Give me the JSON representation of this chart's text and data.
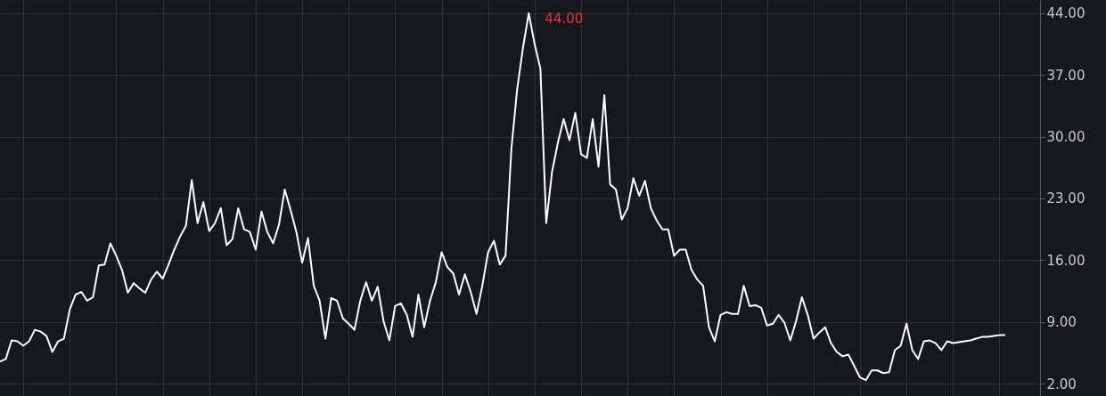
{
  "chart_data": {
    "type": "line",
    "categories": [
      null,
      null,
      null,
      null,
      null,
      null,
      null,
      null,
      null,
      null,
      null,
      null,
      null,
      null,
      null,
      null,
      null,
      null,
      null,
      null,
      null,
      null,
      null,
      null,
      null,
      null,
      null,
      null,
      null,
      null,
      null,
      null,
      null,
      null,
      null,
      null,
      null,
      null,
      null,
      null,
      null,
      null,
      null,
      null,
      null,
      null,
      null,
      null,
      null,
      null,
      null,
      null,
      null,
      null,
      null,
      null,
      null,
      null,
      null,
      null,
      null,
      null,
      null,
      null,
      null,
      null,
      null,
      null,
      null,
      null,
      null,
      null,
      null,
      null,
      null,
      null,
      null,
      null,
      null,
      null,
      null,
      null,
      null,
      null,
      null,
      null,
      null,
      null,
      null,
      null,
      null,
      null,
      null,
      null,
      null,
      null,
      null,
      null,
      null,
      null,
      null,
      null,
      null,
      null,
      null,
      null,
      null,
      null,
      null,
      null,
      null,
      null,
      null,
      null,
      null,
      null,
      null,
      null,
      null,
      null,
      null,
      null,
      null,
      null,
      null,
      null,
      null,
      null,
      null,
      null,
      null,
      null,
      null,
      null,
      null,
      null,
      null,
      null,
      null,
      null,
      null,
      null,
      null,
      null,
      null,
      null,
      null,
      null,
      null,
      null,
      null,
      null,
      null,
      null,
      null,
      null,
      null,
      null,
      null,
      null,
      null,
      null,
      null,
      null,
      null,
      null,
      null,
      null,
      null,
      null,
      null,
      null,
      null,
      null
    ],
    "series": [
      {
        "color": "#ffffff",
        "values": [
          4.5,
          4.8,
          6.9,
          6.8,
          6.3,
          6.8,
          8.1,
          7.9,
          7.4,
          5.6,
          6.8,
          7.1,
          10.4,
          12.1,
          12.4,
          11.4,
          11.8,
          15.4,
          15.5,
          17.9,
          16.5,
          14.9,
          12.3,
          13.4,
          12.8,
          12.3,
          13.8,
          14.7,
          13.9,
          15.5,
          17.2,
          18.7,
          19.9,
          25.1,
          20.2,
          22.6,
          19.3,
          20.2,
          21.9,
          17.7,
          18.4,
          21.9,
          19.5,
          19.2,
          17.2,
          21.5,
          19.2,
          17.9,
          20.0,
          24.0,
          21.7,
          19.2,
          15.7,
          18.5,
          13.1,
          11.4,
          7.1,
          11.7,
          11.4,
          9.4,
          8.8,
          8.1,
          11.4,
          13.5,
          11.4,
          13.0,
          9.1,
          6.9,
          10.8,
          11.1,
          9.8,
          7.3,
          12.1,
          8.4,
          11.4,
          13.5,
          16.9,
          15.2,
          14.5,
          12.1,
          14.4,
          12.4,
          9.9,
          13.1,
          16.9,
          18.2,
          15.5,
          16.5,
          28.6,
          35.4,
          40.1,
          44.0,
          40.5,
          37.7,
          20.2,
          26.0,
          29.3,
          32.0,
          29.6,
          32.7,
          28.0,
          27.6,
          32.0,
          26.6,
          34.7,
          24.6,
          24.0,
          20.6,
          21.9,
          25.3,
          23.3,
          25.0,
          21.9,
          20.5,
          19.5,
          19.5,
          16.5,
          17.2,
          17.2,
          14.9,
          13.8,
          13.1,
          8.4,
          6.8,
          9.8,
          10.1,
          9.9,
          9.9,
          13.1,
          10.8,
          10.9,
          10.6,
          8.6,
          8.8,
          9.8,
          8.9,
          6.9,
          9.1,
          11.8,
          9.8,
          7.1,
          7.8,
          8.4,
          6.6,
          5.6,
          5.1,
          5.3,
          4.0,
          2.7,
          2.4,
          3.5,
          3.5,
          3.2,
          3.3,
          5.8,
          6.3,
          8.8,
          5.8,
          4.8,
          6.8,
          6.9,
          6.6,
          5.8,
          6.8,
          6.6,
          6.7,
          6.8,
          6.9,
          7.1,
          7.3,
          7.3,
          7.4,
          7.5,
          7.5
        ]
      }
    ],
    "ylim": [
      0.6,
      45.5
    ],
    "yticks": [
      {
        "value": 2,
        "label": "2.00"
      },
      {
        "value": 9,
        "label": "9.00"
      },
      {
        "value": 16,
        "label": "16.00"
      },
      {
        "value": 23,
        "label": "23.00"
      },
      {
        "value": 30,
        "label": "30.00"
      },
      {
        "value": 37,
        "label": "37.00"
      },
      {
        "value": 44,
        "label": "44.00"
      }
    ],
    "tick_labels": "y",
    "grid": true,
    "line_style": "solid",
    "marker": "none",
    "annotations": [
      "44.00"
    ]
  }
}
